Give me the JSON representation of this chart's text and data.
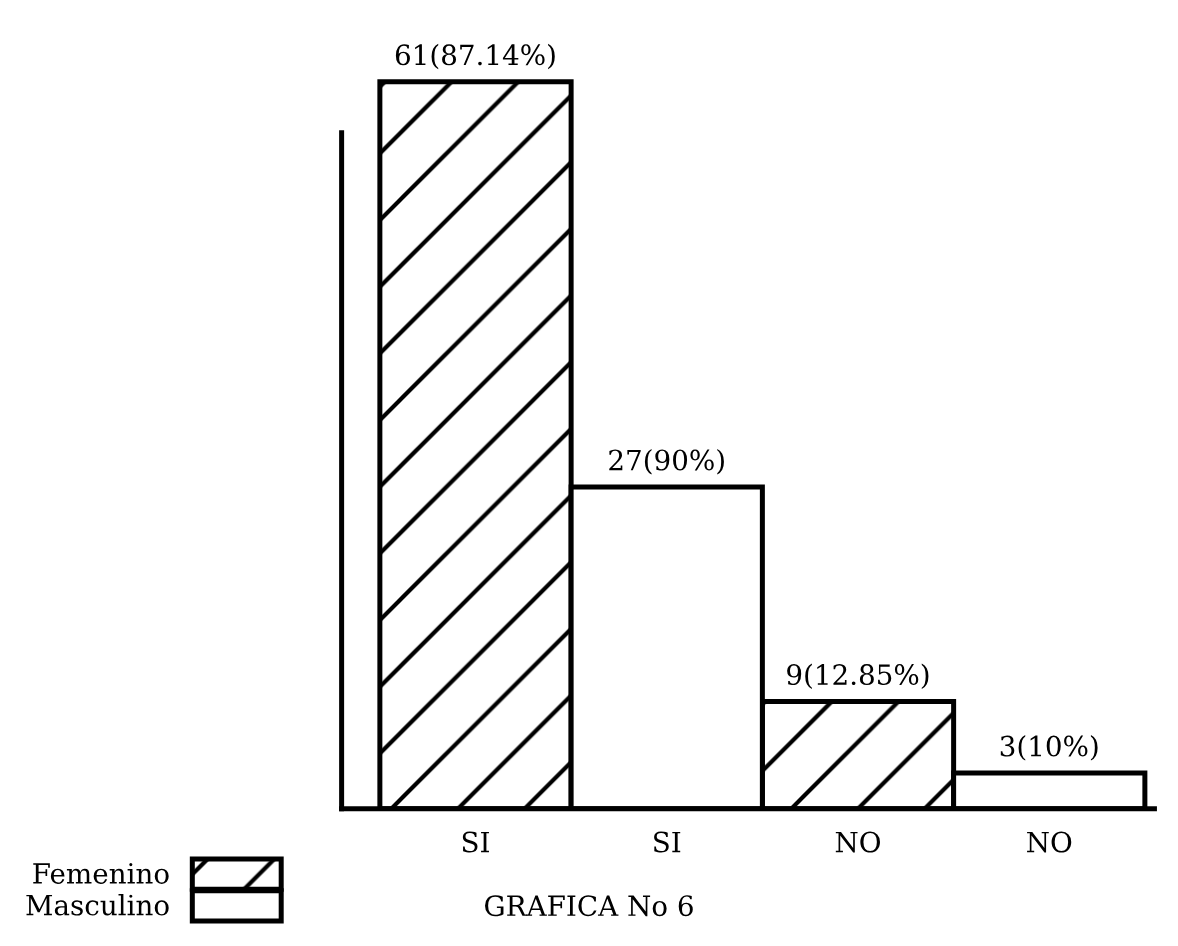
{
  "chart_data": {
    "type": "bar",
    "categories": [
      "SI",
      "SI",
      "NO",
      "NO"
    ],
    "series": [
      {
        "name": "Femenino",
        "color": "#000000",
        "values": [
          61,
          null,
          9,
          null
        ],
        "value_labels": [
          "61(87.14%)",
          null,
          "9(12.85%)",
          null
        ]
      },
      {
        "name": "Masculino",
        "color": "#ffffff",
        "values": [
          null,
          27,
          null,
          3
        ],
        "value_labels": [
          null,
          "27(90%)",
          null,
          "3(10%)"
        ]
      }
    ],
    "legend": "bottom left",
    "tick_labels": "x",
    "annotations": [
      "GRAFICA No 6"
    ]
  }
}
